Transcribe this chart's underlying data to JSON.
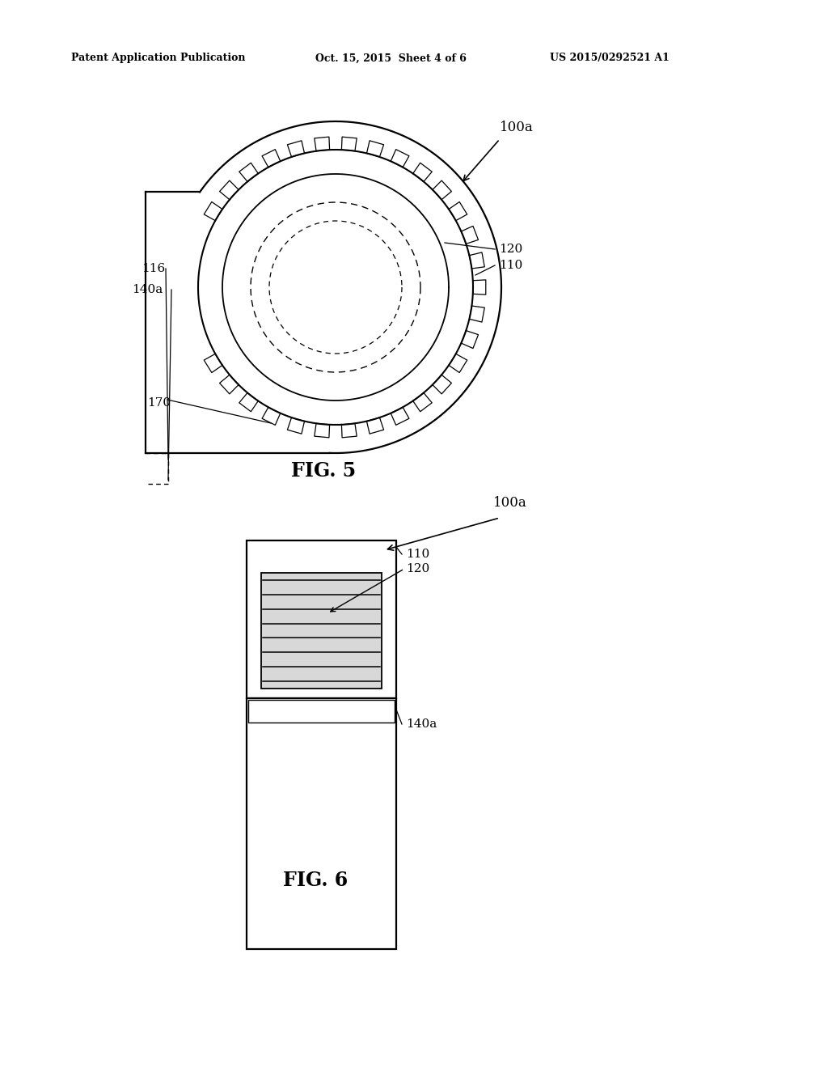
{
  "bg_color": "#ffffff",
  "text_color": "#000000",
  "line_color": "#000000",
  "header_left": "Patent Application Publication",
  "header_mid": "Oct. 15, 2015  Sheet 4 of 6",
  "header_right": "US 2015/0292521 A1",
  "fig5_label": "FIG. 5",
  "fig6_label": "FIG. 6",
  "label_100a_fig5": "100a",
  "label_110_fig5": "110",
  "label_120_fig5": "120",
  "label_116": "116",
  "label_140a_fig5": "140a",
  "label_170": "170",
  "label_100a_fig6": "100a",
  "label_110_fig6": "110",
  "label_120_fig6": "120",
  "label_140a_fig6": "140a"
}
